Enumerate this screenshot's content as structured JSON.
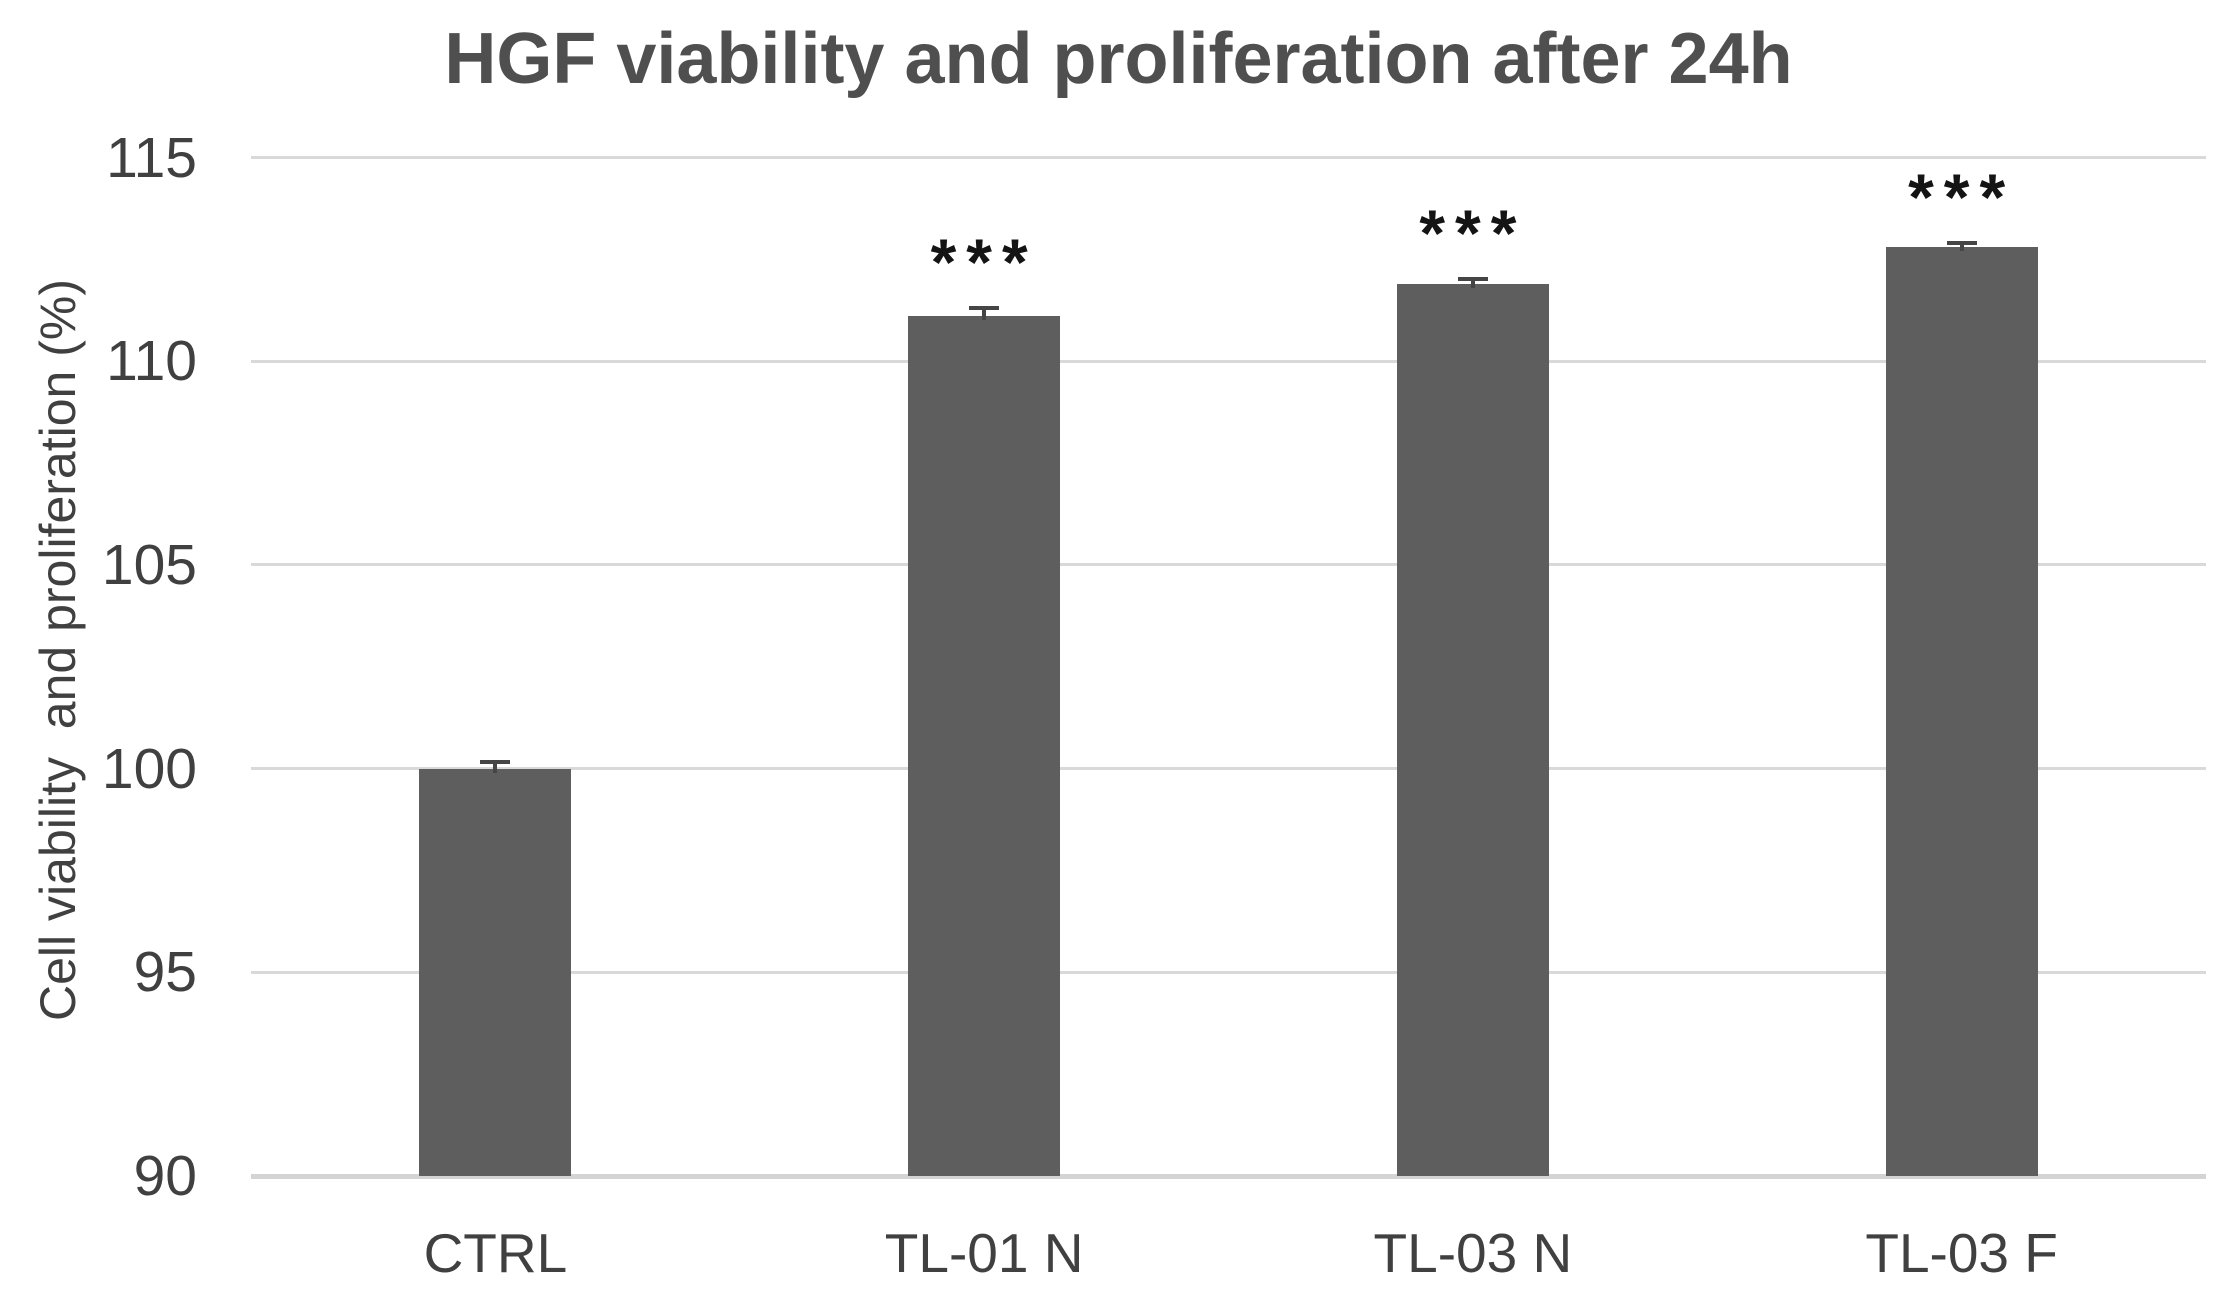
{
  "chart_data": {
    "type": "bar",
    "title": "HGF viability and proliferation after 24h",
    "ylabel": "Cell viability  and proliferation (%)",
    "xlabel": "",
    "categories": [
      "CTRL",
      "TL-01 N",
      "TL-03 N",
      "TL-03 F"
    ],
    "values": [
      100.0,
      111.1,
      111.9,
      112.8
    ],
    "errors": [
      0.15,
      0.2,
      0.12,
      0.1
    ],
    "significance": [
      "",
      "***",
      "***",
      "***"
    ],
    "ylim": [
      90,
      115
    ],
    "yticks": [
      90,
      95,
      100,
      105,
      110,
      115
    ],
    "grid": true,
    "legend": false,
    "colors": {
      "bar": "#5e5e5e",
      "gridline": "#d9d9d9",
      "axis_line": "#d4d4d4",
      "title_text": "#4f4f4f",
      "axis_text": "#404040",
      "error_bar": "#454545",
      "significance_text": "#141414"
    }
  }
}
